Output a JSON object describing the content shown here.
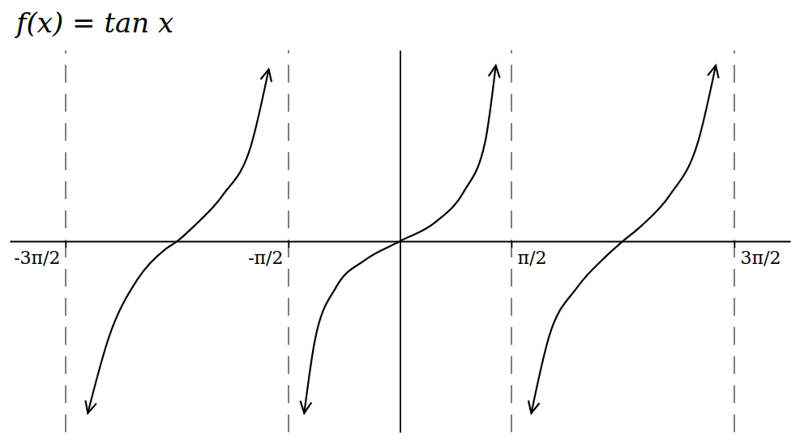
{
  "chart_data": {
    "type": "line",
    "title": "f(x) = tan x",
    "x": [
      -4.4,
      -4.1,
      -3.7,
      -3.3,
      -3.14,
      -2.9,
      -2.5,
      -2.1,
      -1.85,
      -1.6,
      -1.35,
      -1.2,
      -0.9,
      -0.5,
      0,
      0.5,
      0.9,
      1.2,
      1.35,
      1.6,
      1.85,
      2.1,
      2.5,
      2.9,
      3.14,
      3.4,
      3.8,
      4.2,
      4.45
    ],
    "values": [
      -4.5,
      -2.5,
      -1.0,
      -0.2,
      0,
      0.4,
      1.2,
      2.5,
      4.5,
      null,
      -4.5,
      -2.6,
      -1.2,
      -0.5,
      0,
      0.5,
      1.3,
      2.6,
      4.6,
      null,
      -4.5,
      -2.5,
      -1.2,
      -0.4,
      0,
      0.4,
      1.2,
      2.6,
      4.6
    ],
    "color": "#000000",
    "marker": "arrow",
    "line_style": "solid",
    "xlim": [
      -5.5,
      5.5
    ],
    "xticks": [
      {
        "value": -4.712,
        "label": "-3π/2"
      },
      {
        "value": -1.571,
        "label": "-π/2"
      },
      {
        "value": 1.571,
        "label": "π/2"
      },
      {
        "value": 4.712,
        "label": "3π/2"
      }
    ],
    "ylim": [
      -5,
      5
    ],
    "yticks": [],
    "grid": true,
    "tick_labels": "x"
  }
}
